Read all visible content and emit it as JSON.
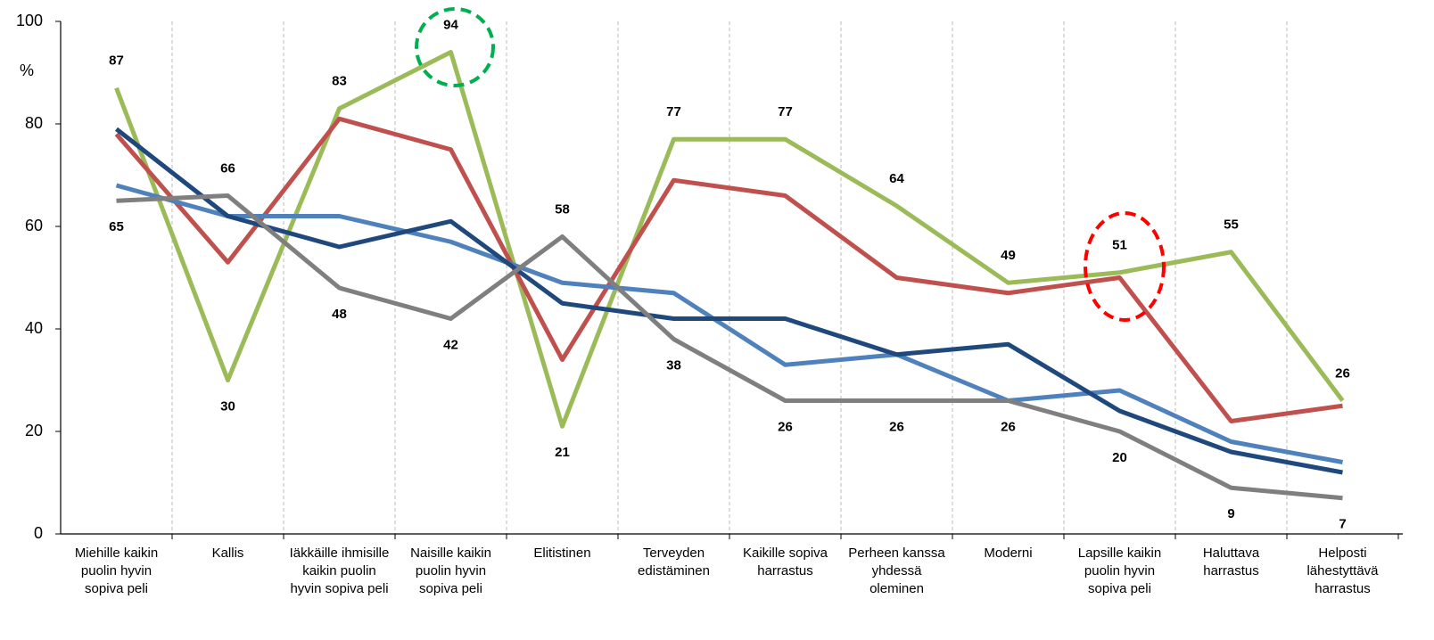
{
  "chart_data": {
    "type": "line",
    "y_label": "%",
    "categories": [
      "Miehille kaikin puolin hyvin sopiva peli",
      "Kallis",
      "Iäkkäille ihmisille kaikin puolin hyvin sopiva peli",
      "Naisille kaikin puolin hyvin sopiva peli",
      "Elitistinen",
      "Terveyden edistäminen",
      "Kaikille sopiva harrastus",
      "Perheen kanssa yhdessä oleminen",
      "Moderni",
      "Lapsille kaikin puolin hyvin sopiva peli",
      "Haluttava harrastus",
      "Helposti lähestyttävä harrastus"
    ],
    "series": [
      {
        "color": "#9bbb59",
        "show_labels": true,
        "values": [
          87,
          30,
          83,
          94,
          21,
          77,
          77,
          64,
          49,
          51,
          55,
          26
        ]
      },
      {
        "color": "#c0504d",
        "show_labels": false,
        "values": [
          78,
          53,
          81,
          75,
          34,
          69,
          66,
          50,
          47,
          50,
          22,
          25
        ]
      },
      {
        "color": "#4f81bd",
        "show_labels": false,
        "values": [
          68,
          62,
          62,
          57,
          49,
          47,
          33,
          35,
          26,
          28,
          18,
          14
        ]
      },
      {
        "color": "#1f497d",
        "show_labels": false,
        "values": [
          79,
          62,
          56,
          61,
          45,
          42,
          42,
          35,
          37,
          24,
          16,
          12
        ]
      },
      {
        "color": "#7f7f7f",
        "show_labels": true,
        "values": [
          65,
          66,
          48,
          42,
          58,
          38,
          26,
          26,
          26,
          20,
          9,
          7
        ]
      }
    ],
    "ylim": [
      0,
      100
    ],
    "yticks": [
      0,
      20,
      40,
      60,
      80,
      100
    ],
    "category_separators": true
  }
}
